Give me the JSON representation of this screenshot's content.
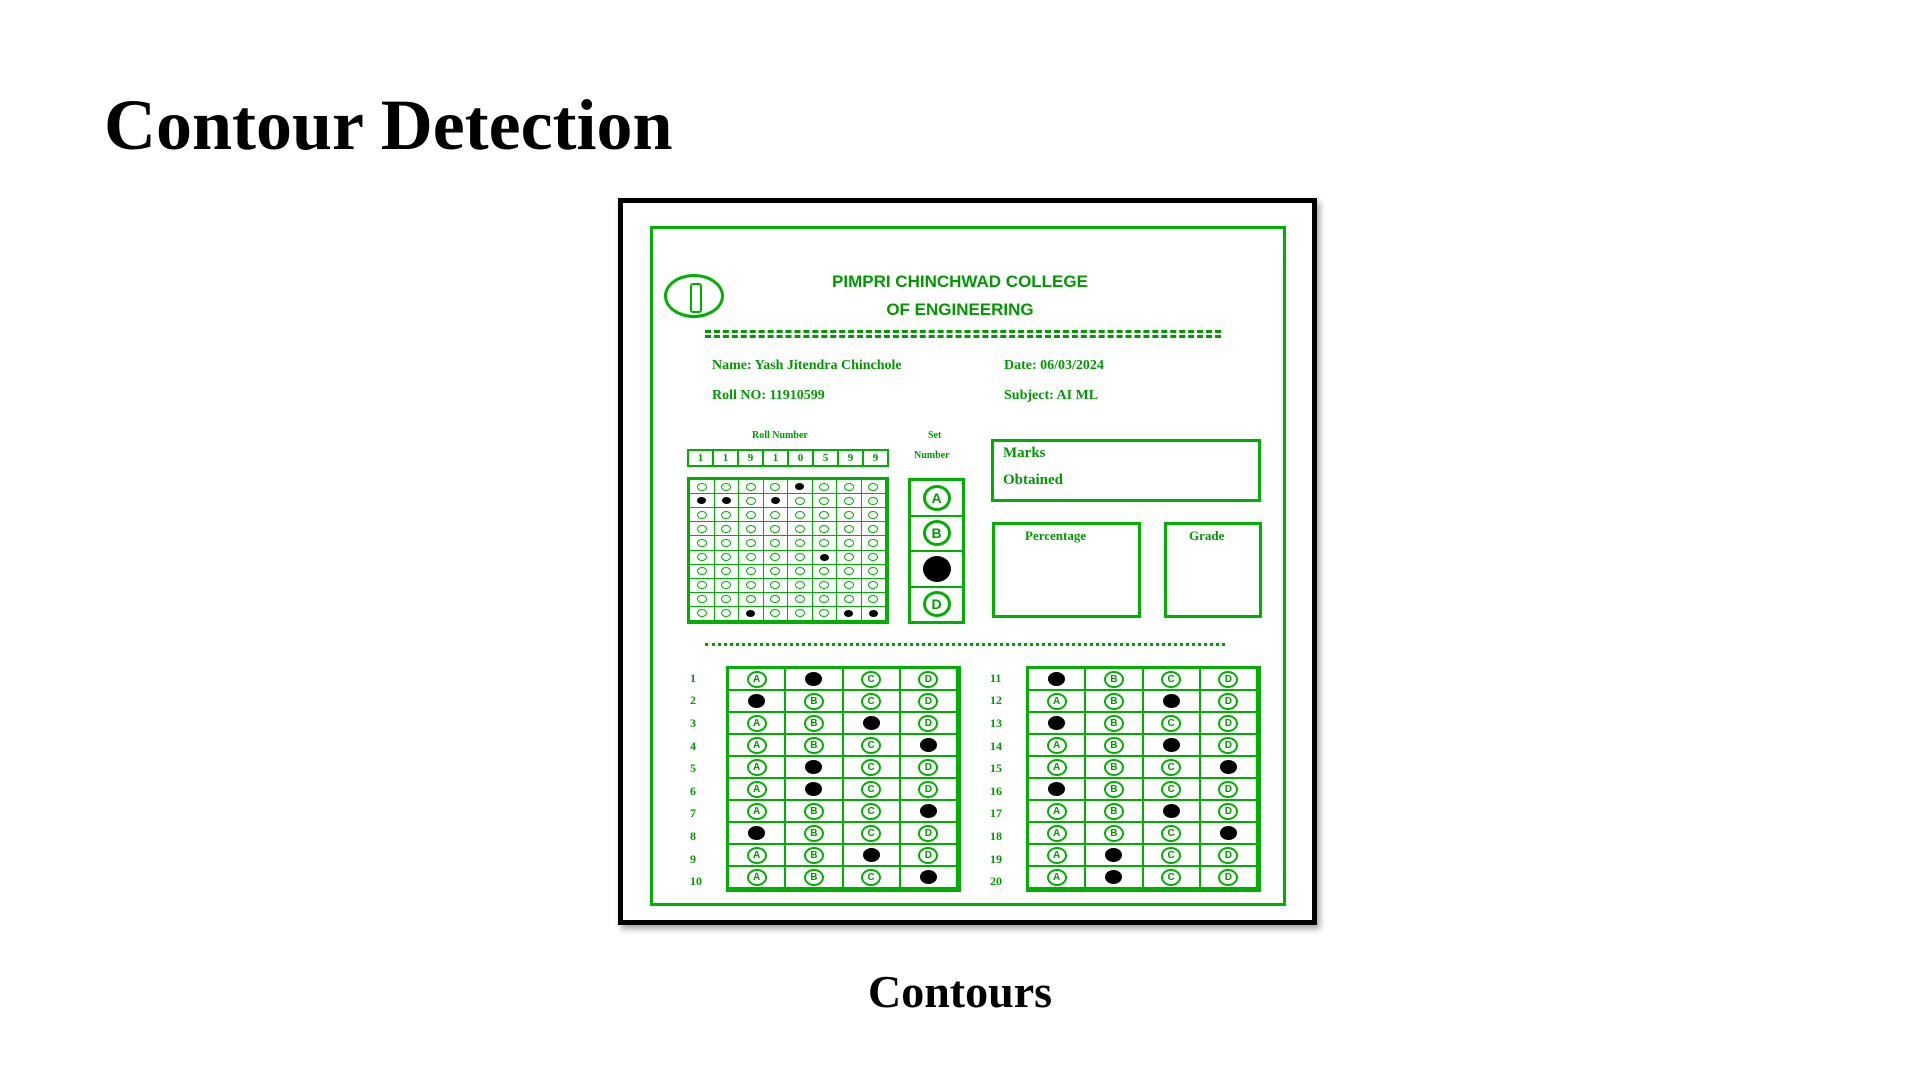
{
  "slide": {
    "title": "Contour Detection",
    "caption": "Contours"
  },
  "sheet": {
    "college_line1": "PIMPRI CHINCHWAD COLLEGE",
    "college_line2": "OF ENGINEERING",
    "name": "Name: Yash Jitendra Chinchole",
    "date": "Date: 06/03/2024",
    "roll_no": "Roll NO: 11910599",
    "subject": "Subject: AI ML",
    "roll_number_label": "Roll Number",
    "roll_digits": [
      "1",
      "1",
      "9",
      "1",
      "0",
      "5",
      "9",
      "9"
    ],
    "set_number_label_1": "Set",
    "set_number_label_2": "Number",
    "set_options": [
      "A",
      "B",
      "C",
      "D"
    ],
    "set_selected": 2,
    "marks_label_1": "Marks",
    "marks_label_2": "Obtained",
    "percentage_label": "Percentage",
    "grade_label": "Grade",
    "option_letters": [
      "A",
      "B",
      "C",
      "D"
    ],
    "answers_left": {
      "numbers": [
        "1",
        "2",
        "3",
        "4",
        "5",
        "6",
        "7",
        "8",
        "9",
        "10"
      ],
      "marked": [
        1,
        0,
        2,
        3,
        1,
        1,
        3,
        0,
        2,
        3
      ]
    },
    "answers_right": {
      "numbers": [
        "11",
        "12",
        "13",
        "14",
        "15",
        "16",
        "17",
        "18",
        "19",
        "20"
      ],
      "marked": [
        0,
        2,
        0,
        2,
        3,
        0,
        2,
        3,
        1,
        1
      ]
    }
  }
}
